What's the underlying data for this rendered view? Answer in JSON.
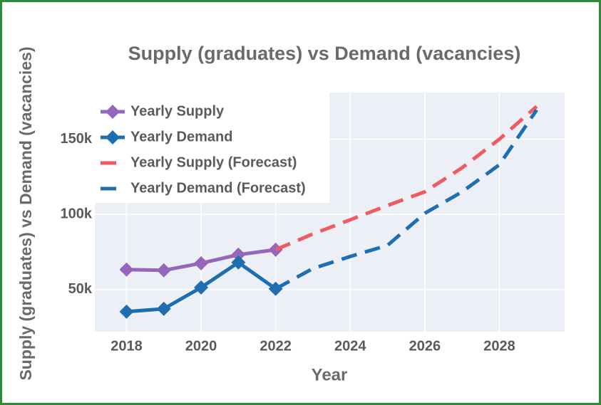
{
  "chart_data": {
    "type": "line",
    "title": "Supply (graduates) vs Demand (vacancies)",
    "xlabel": "Year",
    "ylabel": "Supply (graduates) vs Demand (vacancies)",
    "x": [
      2018,
      2019,
      2020,
      2021,
      2022,
      2023,
      2024,
      2025,
      2026,
      2027,
      2028,
      2029
    ],
    "series": [
      {
        "name": "Yearly Supply",
        "color": "#9467bd",
        "dash": false,
        "markers": true,
        "values": [
          63300,
          62800,
          67500,
          73200,
          76500,
          null,
          null,
          null,
          null,
          null,
          null,
          null
        ]
      },
      {
        "name": "Yearly Demand",
        "color": "#1f6fb0",
        "dash": false,
        "markers": true,
        "values": [
          35300,
          37200,
          51400,
          68000,
          50500,
          null,
          null,
          null,
          null,
          null,
          null,
          null
        ]
      },
      {
        "name": "Yearly Supply (Forecast)",
        "color": "#ef5b63",
        "dash": true,
        "markers": false,
        "values": [
          null,
          null,
          null,
          null,
          76500,
          87000,
          96400,
          105900,
          115000,
          131000,
          150000,
          171800
        ]
      },
      {
        "name": "Yearly Demand (Forecast)",
        "color": "#1f6fb0",
        "dash": true,
        "markers": false,
        "values": [
          null,
          null,
          null,
          null,
          50500,
          64000,
          72000,
          79400,
          100700,
          115000,
          133000,
          169400
        ]
      }
    ],
    "xlim": [
      2017.15,
      2029.75
    ],
    "ylim": [
      22000,
      181000
    ],
    "xticks": [
      2018,
      2020,
      2022,
      2024,
      2026,
      2028
    ],
    "yticks": [
      {
        "value": 50000,
        "label": "50k"
      },
      {
        "value": 100000,
        "label": "100k"
      },
      {
        "value": 150000,
        "label": "150k"
      }
    ],
    "grid": true,
    "legend": "top-left"
  }
}
